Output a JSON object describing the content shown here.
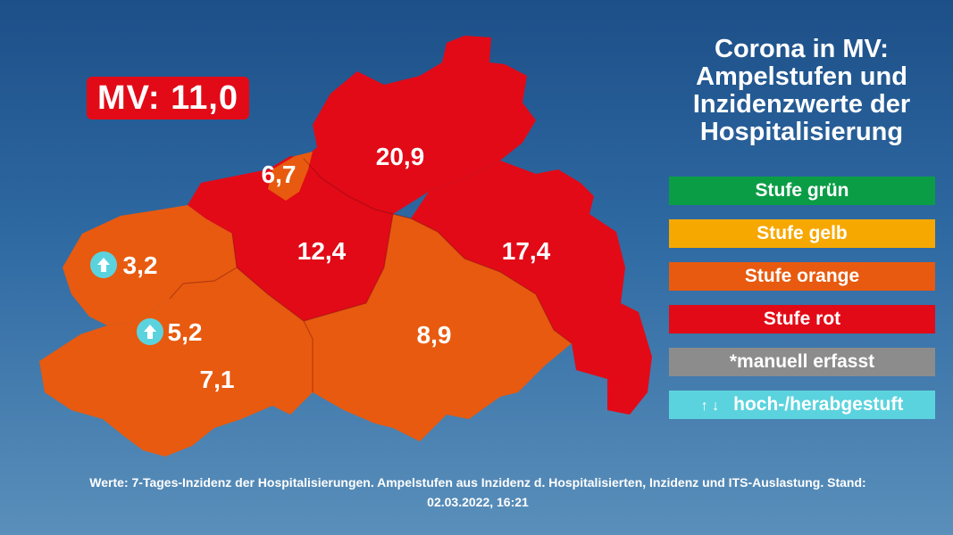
{
  "statewide": {
    "label": "MV: 11,0"
  },
  "title_lines": [
    "Corona in MV:",
    "Ampelstufen und",
    "Inzidenzwerte der",
    "Hospitalisierung"
  ],
  "legend": [
    {
      "label": "Stufe grün",
      "color": "#0a9d46"
    },
    {
      "label": "Stufe gelb",
      "color": "#f7a800"
    },
    {
      "label": "Stufe orange",
      "color": "#e85a0f"
    },
    {
      "label": "Stufe rot",
      "color": "#e20a17"
    },
    {
      "label": "*manuell erfasst",
      "color": "#8c8c8c"
    },
    {
      "label": "hoch-/herabgestuft",
      "arrows": "↑ ↓",
      "color": "#5bd3de"
    }
  ],
  "regions": [
    {
      "value": "20,9",
      "level": "rot"
    },
    {
      "value": "6,7",
      "level": "orange"
    },
    {
      "value": "12,4",
      "level": "rot"
    },
    {
      "value": "17,4",
      "level": "rot"
    },
    {
      "value": "3,2",
      "level": "orange",
      "arrow": "up"
    },
    {
      "value": "5,2",
      "level": "orange",
      "arrow": "up"
    },
    {
      "value": "7,1",
      "level": "orange"
    },
    {
      "value": "8,9",
      "level": "orange"
    }
  ],
  "footer": {
    "line1": "Werte: 7-Tages-Inzidenz der Hospitalisierungen. Ampelstufen aus Inzidenz d. Hospitalisierten, Inzidenz und ITS-Auslastung. Stand:",
    "line2": "02.03.2022, 16:21"
  }
}
